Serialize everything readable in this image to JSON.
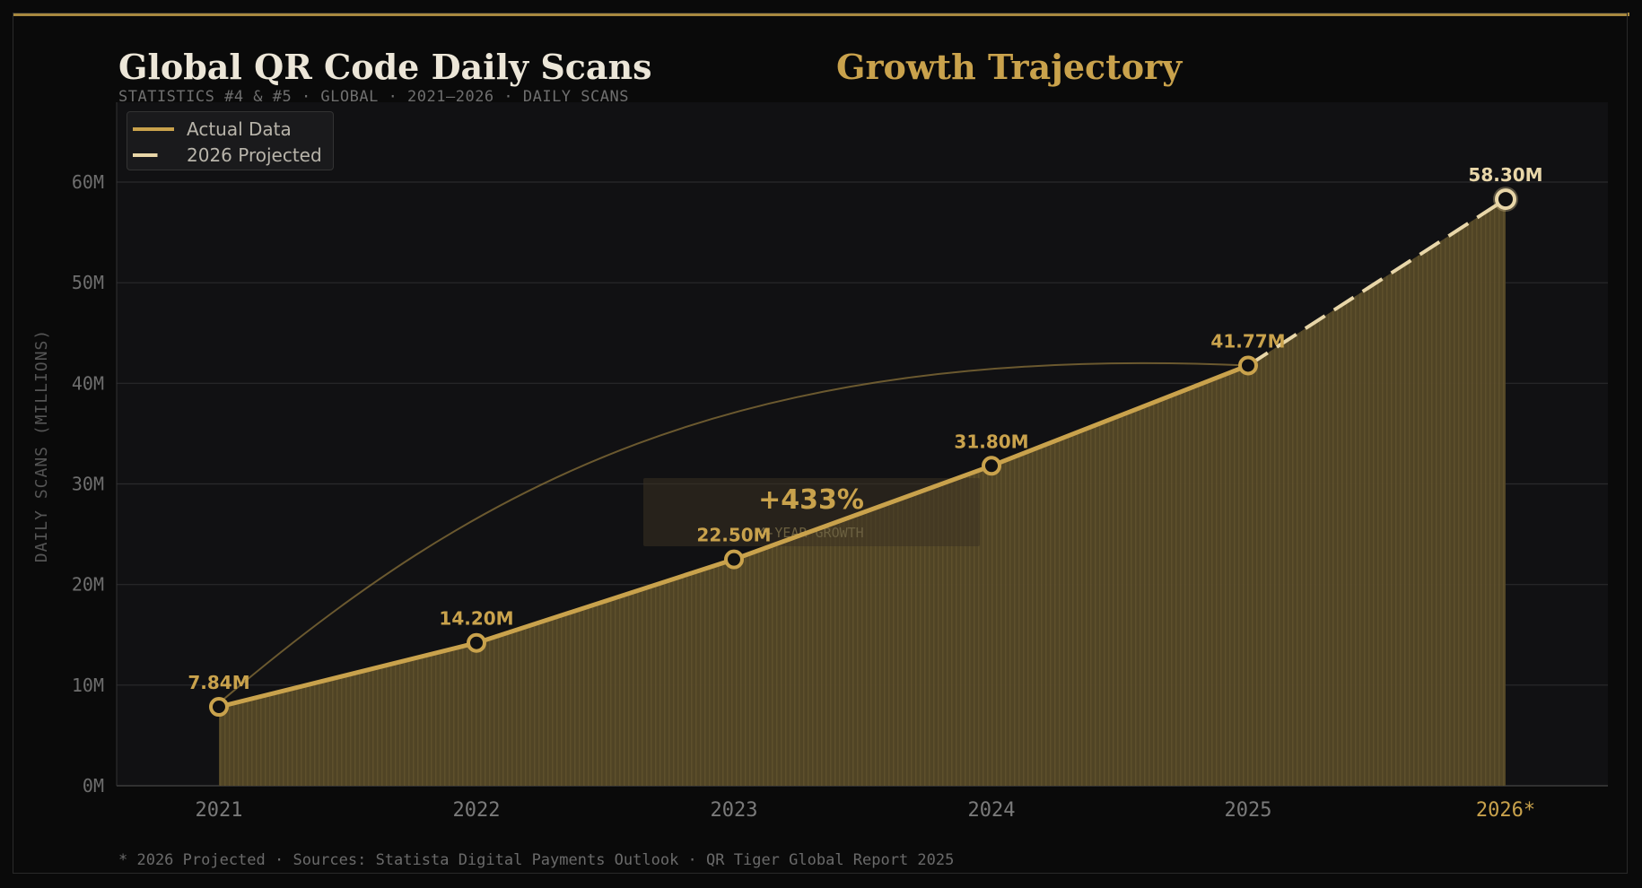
{
  "header": {
    "title": "Global QR Code Daily Scans",
    "title_accent": "Growth Trajectory",
    "subtitle": "STATISTICS #4 & #5  ·  GLOBAL  ·  2021–2026  ·  DAILY SCANS"
  },
  "footer": {
    "note": "* 2026 Projected  ·  Sources: Statista Digital Payments Outlook · QR Tiger Global Report 2025"
  },
  "legend": {
    "actual": "Actual Data",
    "projected": "2026 Projected"
  },
  "annotation": {
    "value": "+433%",
    "label": "4-YEAR GROWTH"
  },
  "colors": {
    "actual": "#c9a24c",
    "projected": "#e8d6a8",
    "background": "#111113",
    "grid": "#2a2a2c"
  },
  "chart_data": {
    "type": "line",
    "title": "Global QR Code Daily Scans",
    "ylabel": "DAILY SCANS (MILLIONS)",
    "xlabel": "",
    "categories": [
      "2021",
      "2022",
      "2023",
      "2024",
      "2025",
      "2026*"
    ],
    "series": [
      {
        "name": "Actual Data",
        "values": [
          7.84,
          14.2,
          22.5,
          31.8,
          41.77,
          null
        ]
      },
      {
        "name": "2026 Projected",
        "values": [
          null,
          null,
          null,
          null,
          41.77,
          58.3
        ]
      }
    ],
    "data_labels": [
      "7.84M",
      "14.20M",
      "22.50M",
      "31.80M",
      "41.77M",
      "58.30M"
    ],
    "ylim": [
      0,
      68
    ],
    "yticks": [
      0,
      10,
      20,
      30,
      40,
      50,
      60
    ],
    "ytick_labels": [
      "0M",
      "10M",
      "20M",
      "30M",
      "40M",
      "50M",
      "60M"
    ],
    "grid": true,
    "legend_position": "top-left"
  }
}
